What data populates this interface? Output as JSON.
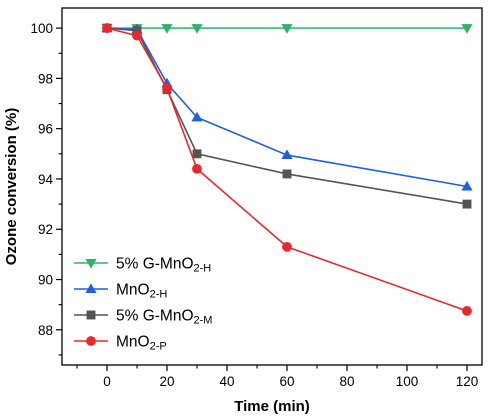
{
  "chart_data": {
    "type": "line",
    "xlabel": "Time (min)",
    "ylabel": "Ozone conversion (%)",
    "xlim": [
      -15,
      125
    ],
    "ylim": [
      86.6,
      100.8
    ],
    "xticks": [
      0,
      20,
      40,
      60,
      80,
      100,
      120
    ],
    "yticks": [
      88,
      90,
      92,
      94,
      96,
      98,
      100
    ],
    "grid": false,
    "legend_position": "bottom-left",
    "series": [
      {
        "name": "5% G-MnO2-H",
        "label_parts": [
          "5% G-MnO",
          "2-H"
        ],
        "color": "#2fb36b",
        "marker": "triangle-down",
        "x": [
          0,
          10,
          20,
          30,
          60,
          120
        ],
        "y": [
          100.0,
          100.0,
          100.0,
          100.0,
          100.0,
          100.0
        ]
      },
      {
        "name": "MnO2-H",
        "label_parts": [
          "MnO",
          "2-H"
        ],
        "color": "#1f5fe0",
        "marker": "triangle-up",
        "x": [
          0,
          10,
          20,
          30,
          60,
          120
        ],
        "y": [
          100.0,
          99.95,
          97.8,
          96.45,
          94.95,
          93.7
        ]
      },
      {
        "name": "5% G-MnO2-M",
        "label_parts": [
          "5% G-MnO",
          "2-M"
        ],
        "color": "#555555",
        "marker": "square",
        "x": [
          0,
          10,
          20,
          30,
          60,
          120
        ],
        "y": [
          100.0,
          99.9,
          97.55,
          95.0,
          94.2,
          93.0
        ]
      },
      {
        "name": "MnO2-P",
        "label_parts": [
          "MnO",
          "2-P"
        ],
        "color": "#e8282b",
        "marker": "circle",
        "x": [
          0,
          10,
          20,
          30,
          60,
          120
        ],
        "y": [
          100.0,
          99.7,
          97.6,
          94.4,
          91.3,
          88.75
        ]
      }
    ]
  }
}
